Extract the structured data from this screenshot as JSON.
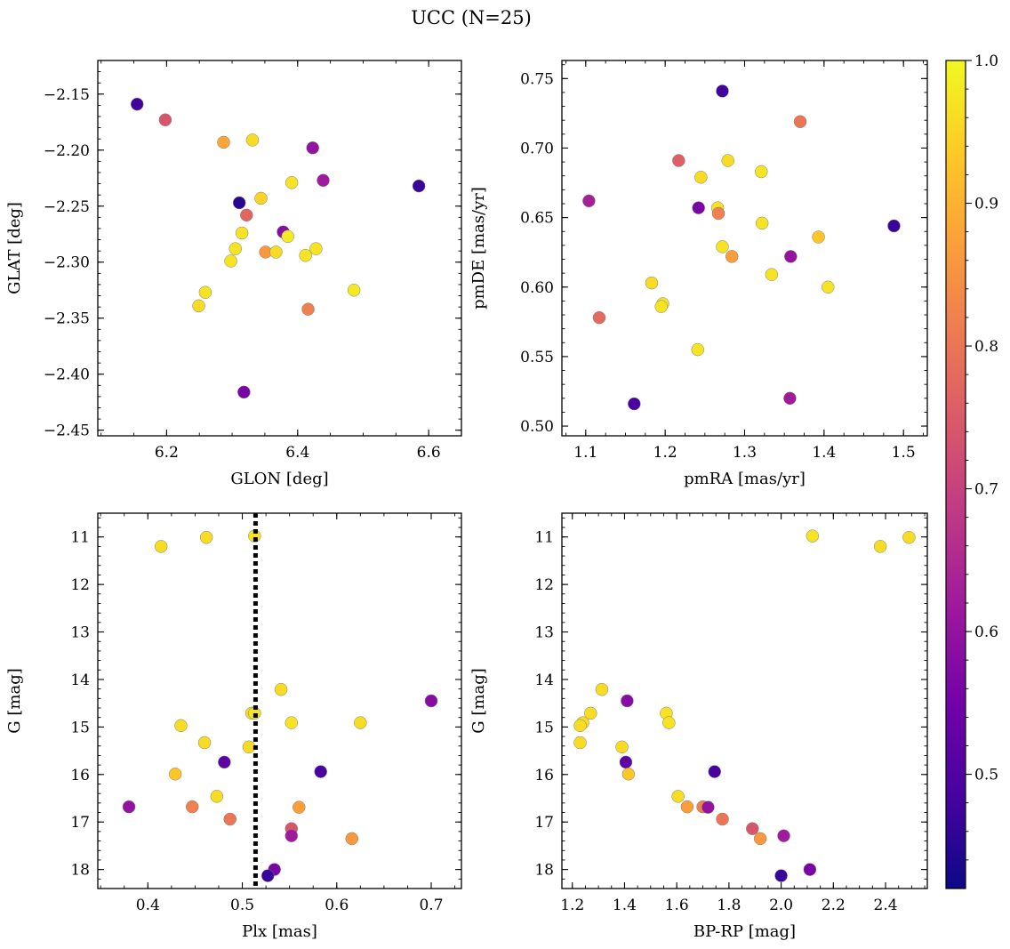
{
  "title": "UCC (N=25)",
  "colorbar": {
    "cmap": "plasma",
    "range": [
      0.42,
      1.0
    ],
    "ticks": [
      "0.5",
      "0.6",
      "0.7",
      "0.8",
      "0.9",
      "1.0"
    ],
    "tick_values": [
      0.5,
      0.6,
      0.7,
      0.8,
      0.9,
      1.0
    ]
  },
  "colors": {
    "plasma_stops": [
      "#0d0887",
      "#46039f",
      "#7201a8",
      "#9c179e",
      "#bd3786",
      "#d8576b",
      "#ed7953",
      "#fb9f3a",
      "#fdca26",
      "#f0f921"
    ],
    "marker_edge": "#7f7f7f",
    "reference_line": "#000000"
  },
  "chart_data": [
    {
      "type": "scatter",
      "xlabel": "GLON [deg]",
      "ylabel": "GLAT [deg]",
      "xlim": [
        6.095,
        6.65
      ],
      "ylim": [
        -2.455,
        -2.12
      ],
      "xticks": [
        "6.2",
        "6.4",
        "6.6"
      ],
      "xtick_values": [
        6.2,
        6.4,
        6.6
      ],
      "yticks": [
        "−2.15",
        "−2.20",
        "−2.25",
        "−2.30",
        "−2.35",
        "−2.40",
        "−2.45"
      ],
      "ytick_values": [
        -2.15,
        -2.2,
        -2.25,
        -2.3,
        -2.35,
        -2.4,
        -2.45
      ],
      "points": [
        {
          "x": 6.155,
          "y": -2.159,
          "c": 0.48
        },
        {
          "x": 6.198,
          "y": -2.173,
          "c": 0.74
        },
        {
          "x": 6.287,
          "y": -2.193,
          "c": 0.88
        },
        {
          "x": 6.331,
          "y": -2.191,
          "c": 0.96
        },
        {
          "x": 6.423,
          "y": -2.198,
          "c": 0.6
        },
        {
          "x": 6.391,
          "y": -2.229,
          "c": 0.97
        },
        {
          "x": 6.439,
          "y": -2.227,
          "c": 0.62
        },
        {
          "x": 6.585,
          "y": -2.232,
          "c": 0.47
        },
        {
          "x": 6.311,
          "y": -2.247,
          "c": 0.45
        },
        {
          "x": 6.344,
          "y": -2.243,
          "c": 0.95
        },
        {
          "x": 6.322,
          "y": -2.258,
          "c": 0.77
        },
        {
          "x": 6.315,
          "y": -2.274,
          "c": 0.97
        },
        {
          "x": 6.378,
          "y": -2.273,
          "c": 0.58
        },
        {
          "x": 6.385,
          "y": -2.277,
          "c": 0.98
        },
        {
          "x": 6.305,
          "y": -2.288,
          "c": 0.97
        },
        {
          "x": 6.351,
          "y": -2.291,
          "c": 0.86
        },
        {
          "x": 6.367,
          "y": -2.291,
          "c": 0.96
        },
        {
          "x": 6.428,
          "y": -2.288,
          "c": 0.97
        },
        {
          "x": 6.412,
          "y": -2.294,
          "c": 0.97
        },
        {
          "x": 6.298,
          "y": -2.299,
          "c": 0.97
        },
        {
          "x": 6.486,
          "y": -2.325,
          "c": 0.98
        },
        {
          "x": 6.259,
          "y": -2.327,
          "c": 0.97
        },
        {
          "x": 6.249,
          "y": -2.339,
          "c": 0.96
        },
        {
          "x": 6.416,
          "y": -2.342,
          "c": 0.82
        },
        {
          "x": 6.318,
          "y": -2.416,
          "c": 0.56
        }
      ]
    },
    {
      "type": "scatter",
      "xlabel": "pmRA [mas/yr]",
      "ylabel": "pmDE [mas/yr]",
      "xlim": [
        1.07,
        1.53
      ],
      "ylim": [
        0.493,
        0.763
      ],
      "xticks": [
        "1.1",
        "1.2",
        "1.3",
        "1.4",
        "1.5"
      ],
      "xtick_values": [
        1.1,
        1.2,
        1.3,
        1.4,
        1.5
      ],
      "yticks": [
        "0.50",
        "0.55",
        "0.60",
        "0.65",
        "0.70",
        "0.75"
      ],
      "ytick_values": [
        0.5,
        0.55,
        0.6,
        0.65,
        0.7,
        0.75
      ],
      "points": [
        {
          "x": 1.272,
          "y": 0.741,
          "c": 0.48
        },
        {
          "x": 1.37,
          "y": 0.719,
          "c": 0.8
        },
        {
          "x": 1.217,
          "y": 0.691,
          "c": 0.76
        },
        {
          "x": 1.279,
          "y": 0.691,
          "c": 0.96
        },
        {
          "x": 1.321,
          "y": 0.683,
          "c": 0.97
        },
        {
          "x": 1.245,
          "y": 0.679,
          "c": 0.96
        },
        {
          "x": 1.104,
          "y": 0.662,
          "c": 0.63
        },
        {
          "x": 1.242,
          "y": 0.657,
          "c": 0.56
        },
        {
          "x": 1.266,
          "y": 0.657,
          "c": 0.97
        },
        {
          "x": 1.267,
          "y": 0.653,
          "c": 0.82
        },
        {
          "x": 1.322,
          "y": 0.646,
          "c": 0.97
        },
        {
          "x": 1.488,
          "y": 0.644,
          "c": 0.47
        },
        {
          "x": 1.393,
          "y": 0.636,
          "c": 0.93
        },
        {
          "x": 1.272,
          "y": 0.629,
          "c": 0.97
        },
        {
          "x": 1.284,
          "y": 0.622,
          "c": 0.87
        },
        {
          "x": 1.358,
          "y": 0.622,
          "c": 0.6
        },
        {
          "x": 1.334,
          "y": 0.609,
          "c": 0.97
        },
        {
          "x": 1.183,
          "y": 0.603,
          "c": 0.96
        },
        {
          "x": 1.405,
          "y": 0.6,
          "c": 0.97
        },
        {
          "x": 1.197,
          "y": 0.588,
          "c": 0.97
        },
        {
          "x": 1.195,
          "y": 0.586,
          "c": 0.97
        },
        {
          "x": 1.117,
          "y": 0.578,
          "c": 0.78
        },
        {
          "x": 1.241,
          "y": 0.555,
          "c": 0.97
        },
        {
          "x": 1.357,
          "y": 0.52,
          "c": 0.62
        },
        {
          "x": 1.161,
          "y": 0.516,
          "c": 0.49
        }
      ]
    },
    {
      "type": "scatter",
      "xlabel": "Plx [mas]",
      "ylabel": "G [mag]",
      "xlim": [
        0.347,
        0.732
      ],
      "ylim": [
        18.4,
        10.5
      ],
      "y_inverted": true,
      "xticks": [
        "0.4",
        "0.5",
        "0.6",
        "0.7"
      ],
      "xtick_values": [
        0.4,
        0.5,
        0.6,
        0.7
      ],
      "yticks": [
        "11",
        "12",
        "13",
        "14",
        "15",
        "16",
        "17",
        "18"
      ],
      "ytick_values": [
        11,
        12,
        13,
        14,
        15,
        16,
        17,
        18
      ],
      "reference_line": {
        "orientation": "vertical",
        "x": 0.514,
        "style": "dotted"
      },
      "points": [
        {
          "x": 0.414,
          "y": 11.2,
          "c": 0.96
        },
        {
          "x": 0.462,
          "y": 11.01,
          "c": 0.96
        },
        {
          "x": 0.513,
          "y": 10.98,
          "c": 0.97
        },
        {
          "x": 0.541,
          "y": 14.21,
          "c": 0.96
        },
        {
          "x": 0.7,
          "y": 14.45,
          "c": 0.58
        },
        {
          "x": 0.51,
          "y": 14.71,
          "c": 0.96
        },
        {
          "x": 0.513,
          "y": 14.71,
          "c": 0.97
        },
        {
          "x": 0.552,
          "y": 14.91,
          "c": 0.97
        },
        {
          "x": 0.625,
          "y": 14.91,
          "c": 0.96
        },
        {
          "x": 0.435,
          "y": 14.97,
          "c": 0.96
        },
        {
          "x": 0.46,
          "y": 15.33,
          "c": 0.96
        },
        {
          "x": 0.507,
          "y": 15.42,
          "c": 0.96
        },
        {
          "x": 0.481,
          "y": 15.74,
          "c": 0.52
        },
        {
          "x": 0.583,
          "y": 15.94,
          "c": 0.49
        },
        {
          "x": 0.429,
          "y": 15.99,
          "c": 0.93
        },
        {
          "x": 0.473,
          "y": 16.46,
          "c": 0.96
        },
        {
          "x": 0.38,
          "y": 16.68,
          "c": 0.6
        },
        {
          "x": 0.447,
          "y": 16.68,
          "c": 0.82
        },
        {
          "x": 0.56,
          "y": 16.69,
          "c": 0.87
        },
        {
          "x": 0.487,
          "y": 16.94,
          "c": 0.8
        },
        {
          "x": 0.552,
          "y": 17.14,
          "c": 0.74
        },
        {
          "x": 0.552,
          "y": 17.29,
          "c": 0.62
        },
        {
          "x": 0.616,
          "y": 17.35,
          "c": 0.86
        },
        {
          "x": 0.534,
          "y": 18.0,
          "c": 0.56
        },
        {
          "x": 0.527,
          "y": 18.13,
          "c": 0.47
        }
      ]
    },
    {
      "type": "scatter",
      "xlabel": "BP-RP [mag]",
      "ylabel": "G [mag]",
      "xlim": [
        1.16,
        2.56
      ],
      "ylim": [
        18.4,
        10.5
      ],
      "y_inverted": true,
      "xticks": [
        "1.2",
        "1.4",
        "1.6",
        "1.8",
        "2.0",
        "2.2",
        "2.4"
      ],
      "xtick_values": [
        1.2,
        1.4,
        1.6,
        1.8,
        2.0,
        2.2,
        2.4
      ],
      "yticks": [
        "11",
        "12",
        "13",
        "14",
        "15",
        "16",
        "17",
        "18"
      ],
      "ytick_values": [
        11,
        12,
        13,
        14,
        15,
        16,
        17,
        18
      ],
      "points": [
        {
          "x": 2.12,
          "y": 10.98,
          "c": 0.97
        },
        {
          "x": 2.49,
          "y": 11.01,
          "c": 0.96
        },
        {
          "x": 2.38,
          "y": 11.2,
          "c": 0.96
        },
        {
          "x": 1.313,
          "y": 14.21,
          "c": 0.96
        },
        {
          "x": 1.41,
          "y": 14.45,
          "c": 0.58
        },
        {
          "x": 1.27,
          "y": 14.71,
          "c": 0.96
        },
        {
          "x": 1.56,
          "y": 14.71,
          "c": 0.97
        },
        {
          "x": 1.57,
          "y": 14.91,
          "c": 0.97
        },
        {
          "x": 1.24,
          "y": 14.91,
          "c": 0.96
        },
        {
          "x": 1.23,
          "y": 14.97,
          "c": 0.96
        },
        {
          "x": 1.23,
          "y": 15.33,
          "c": 0.96
        },
        {
          "x": 1.39,
          "y": 15.42,
          "c": 0.96
        },
        {
          "x": 1.405,
          "y": 15.74,
          "c": 0.52
        },
        {
          "x": 1.745,
          "y": 15.94,
          "c": 0.49
        },
        {
          "x": 1.415,
          "y": 15.99,
          "c": 0.93
        },
        {
          "x": 1.605,
          "y": 16.46,
          "c": 0.96
        },
        {
          "x": 1.64,
          "y": 16.68,
          "c": 0.87
        },
        {
          "x": 1.7,
          "y": 16.68,
          "c": 0.82
        },
        {
          "x": 1.72,
          "y": 16.69,
          "c": 0.6
        },
        {
          "x": 1.775,
          "y": 16.94,
          "c": 0.8
        },
        {
          "x": 1.89,
          "y": 17.14,
          "c": 0.74
        },
        {
          "x": 2.01,
          "y": 17.29,
          "c": 0.62
        },
        {
          "x": 1.92,
          "y": 17.35,
          "c": 0.86
        },
        {
          "x": 2.11,
          "y": 18.0,
          "c": 0.56
        },
        {
          "x": 2.0,
          "y": 18.13,
          "c": 0.47
        }
      ]
    }
  ]
}
